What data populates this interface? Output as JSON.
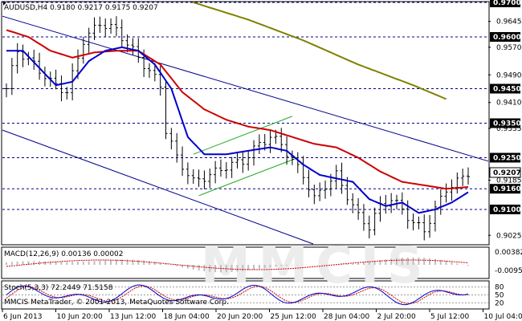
{
  "header": {
    "symbol_line": "AUDUSD,H4  0.9180 0.9217 0.9175 0.9207",
    "copyright": "MMCIS MetaTrader, © 2001-2013, MetaQuotes Software Corp."
  },
  "colors": {
    "up_down_bars": "#000000",
    "ma_red": "#cc0000",
    "ma_blue": "#0000cc",
    "ma_olive": "#808000",
    "channel": "#00008b",
    "inner_channel": "#22aa22",
    "level_line": "#00008b",
    "level_badge": "#000000",
    "macd_hist": "#bfbfbf",
    "macd_signal": "#cc0000",
    "stoch_main": "#0000cc",
    "stoch_signal": "#cc0000",
    "watermark": "#e8e8e8"
  },
  "chart_data": [
    {
      "type": "candlestick",
      "title": "AUDUSD,H4",
      "ohlc_last": {
        "open": 0.918,
        "high": 0.9217,
        "low": 0.9175,
        "close": 0.9207
      },
      "ylim": [
        0.9,
        0.97
      ],
      "y_ticks": [
        "0.9645",
        "0.9570",
        "0.9490",
        "0.9410",
        "0.9335",
        "0.9185",
        "0.9025"
      ],
      "level_labels": [
        "0.9700",
        "0.9600",
        "0.9450",
        "0.9350",
        "0.9250",
        "0.9160",
        "0.9100"
      ],
      "price_badge": "0.9207",
      "x_ticks": [
        "6 Jun 2013",
        "10 Jun 20:00",
        "13 Jun 12:00",
        "18 Jun 04:00",
        "20 Jun 20:00",
        "25 Jun 12:00",
        "28 Jun 04:00",
        "2 Jul 20:00",
        "5 Jul 12:00",
        "10 Jul 04:00"
      ],
      "price_path": [
        [
          0,
          0.945
        ],
        [
          2,
          0.956
        ],
        [
          5,
          0.952
        ],
        [
          8,
          0.947
        ],
        [
          11,
          0.944
        ],
        [
          14,
          0.959
        ],
        [
          17,
          0.964
        ],
        [
          20,
          0.962
        ],
        [
          23,
          0.956
        ],
        [
          26,
          0.95
        ],
        [
          28,
          0.946
        ],
        [
          29,
          0.933
        ],
        [
          31,
          0.925
        ],
        [
          34,
          0.918
        ],
        [
          37,
          0.92
        ],
        [
          40,
          0.9225
        ],
        [
          43,
          0.924
        ],
        [
          46,
          0.929
        ],
        [
          48,
          0.931
        ],
        [
          50,
          0.929
        ],
        [
          52,
          0.924
        ],
        [
          54,
          0.92
        ],
        [
          56,
          0.913
        ],
        [
          58,
          0.917
        ],
        [
          60,
          0.92
        ],
        [
          62,
          0.914
        ],
        [
          64,
          0.908
        ],
        [
          66,
          0.905
        ],
        [
          68,
          0.911
        ],
        [
          70,
          0.913
        ],
        [
          72,
          0.91
        ],
        [
          74,
          0.906
        ],
        [
          76,
          0.904
        ],
        [
          78,
          0.91
        ],
        [
          80,
          0.916
        ],
        [
          82,
          0.918
        ],
        [
          84,
          0.9207
        ]
      ],
      "ma_red_path": [
        [
          0,
          0.962
        ],
        [
          4,
          0.96
        ],
        [
          8,
          0.956
        ],
        [
          12,
          0.954
        ],
        [
          16,
          0.9555
        ],
        [
          20,
          0.956
        ],
        [
          24,
          0.956
        ],
        [
          28,
          0.952
        ],
        [
          32,
          0.944
        ],
        [
          36,
          0.939
        ],
        [
          40,
          0.936
        ],
        [
          44,
          0.934
        ],
        [
          48,
          0.933
        ],
        [
          52,
          0.931
        ],
        [
          56,
          0.929
        ],
        [
          60,
          0.928
        ],
        [
          64,
          0.925
        ],
        [
          68,
          0.921
        ],
        [
          72,
          0.918
        ],
        [
          76,
          0.917
        ],
        [
          80,
          0.916
        ],
        [
          84,
          0.9165
        ]
      ],
      "ma_blue_path": [
        [
          0,
          0.956
        ],
        [
          3,
          0.956
        ],
        [
          6,
          0.951
        ],
        [
          9,
          0.946
        ],
        [
          12,
          0.947
        ],
        [
          15,
          0.953
        ],
        [
          18,
          0.956
        ],
        [
          21,
          0.957
        ],
        [
          24,
          0.956
        ],
        [
          27,
          0.952
        ],
        [
          30,
          0.945
        ],
        [
          33,
          0.931
        ],
        [
          36,
          0.926
        ],
        [
          40,
          0.926
        ],
        [
          44,
          0.927
        ],
        [
          48,
          0.928
        ],
        [
          51,
          0.927
        ],
        [
          54,
          0.923
        ],
        [
          57,
          0.92
        ],
        [
          60,
          0.919
        ],
        [
          63,
          0.918
        ],
        [
          66,
          0.913
        ],
        [
          69,
          0.911
        ],
        [
          72,
          0.912
        ],
        [
          75,
          0.909
        ],
        [
          78,
          0.91
        ],
        [
          81,
          0.912
        ],
        [
          84,
          0.915
        ]
      ],
      "ma_olive_path": [
        [
          34,
          0.97
        ],
        [
          44,
          0.965
        ],
        [
          54,
          0.959
        ],
        [
          64,
          0.952
        ],
        [
          74,
          0.946
        ],
        [
          80,
          0.942
        ]
      ]
    },
    {
      "type": "histogram",
      "title": "MACD(12,26,9) 0.00136 0.00002",
      "y_ticks": [
        "0.00382",
        "-0.0095"
      ]
    },
    {
      "type": "line",
      "title": "Stoch(5,3,3) 72.2449 71.5158",
      "y_ticks": [
        "80",
        "50",
        "20"
      ]
    }
  ]
}
